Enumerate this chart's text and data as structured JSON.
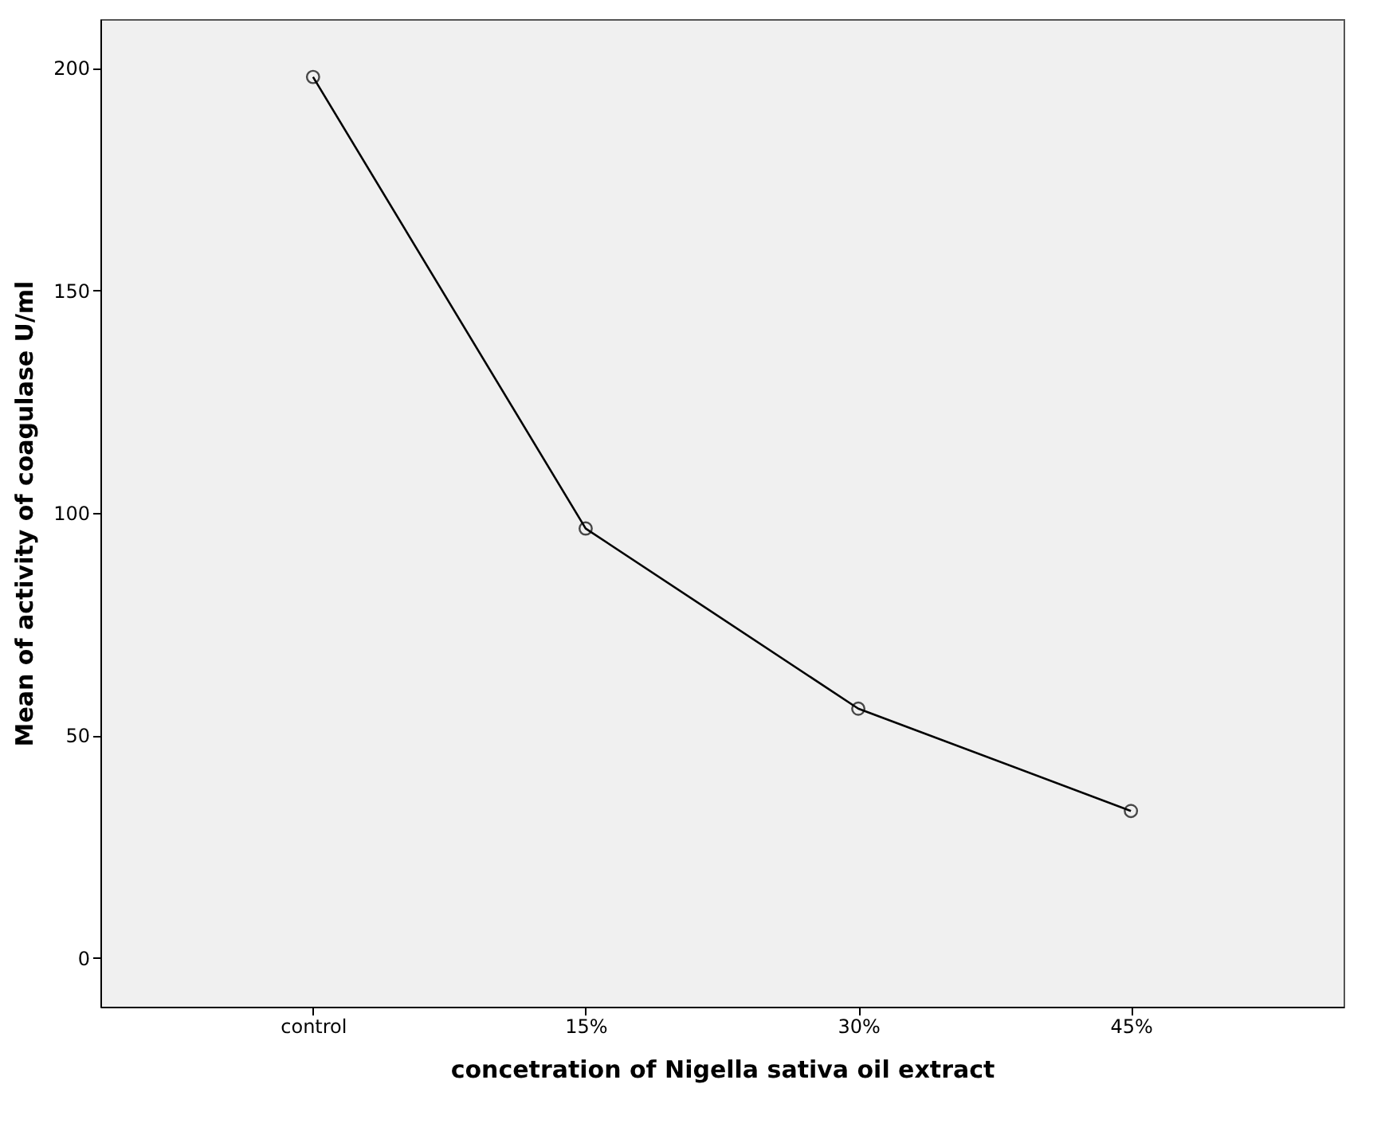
{
  "chart_data": {
    "type": "line",
    "xlabel": "concetration of Nigella sativa oil extract",
    "ylabel": "Mean of activity of coagulase U/ml",
    "categories": [
      "control",
      "15%",
      "30%",
      "45%"
    ],
    "series": [
      {
        "color": "#000000",
        "values": [
          198,
          96.5,
          56,
          33
        ]
      }
    ],
    "ylim": [
      -11,
      211
    ],
    "yticks": [
      0,
      50,
      100,
      150,
      200
    ],
    "marker": "circle",
    "line_style": "solid",
    "grid": false
  }
}
